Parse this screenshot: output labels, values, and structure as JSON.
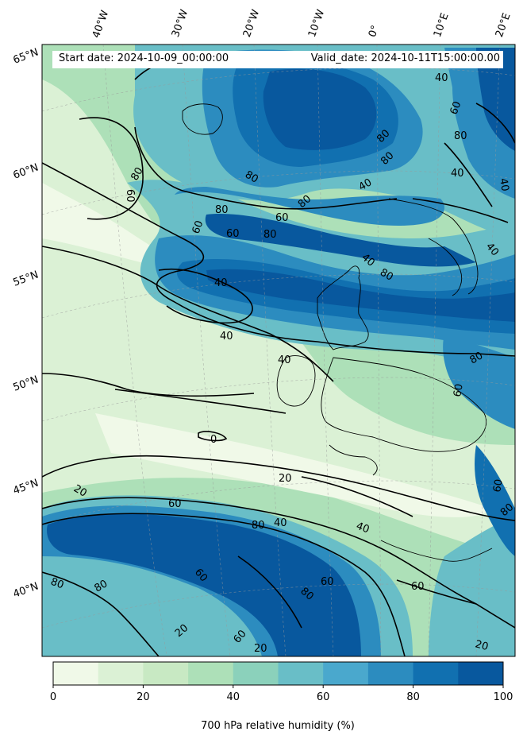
{
  "map": {
    "header": {
      "start_date": "Start date: 2024-10-09_00:00:00",
      "valid_date": "Valid_date: 2024-10-11T15:00:00.00"
    },
    "longitude_labels": [
      "40°W",
      "30°W",
      "20°W",
      "10°W",
      "0°",
      "10°E",
      "20°E"
    ],
    "latitude_labels": [
      "65°N",
      "60°N",
      "55°N",
      "50°N",
      "45°N",
      "40°N"
    ],
    "contour_labels": [
      "0",
      "20",
      "40",
      "60",
      "80"
    ],
    "colorbar": {
      "label": "700 hPa relative humidity (%)",
      "ticks": [
        "0",
        "20",
        "40",
        "60",
        "80",
        "100"
      ],
      "levels": [
        0,
        10,
        20,
        30,
        40,
        50,
        60,
        70,
        80,
        90,
        100
      ],
      "colors": [
        "#f0f9e8",
        "#dbf1d5",
        "#c8e9c3",
        "#ade0b8",
        "#8bd1bb",
        "#69bec7",
        "#4aa8cd",
        "#2c8cbf",
        "#1170b0",
        "#08589e"
      ]
    }
  }
}
